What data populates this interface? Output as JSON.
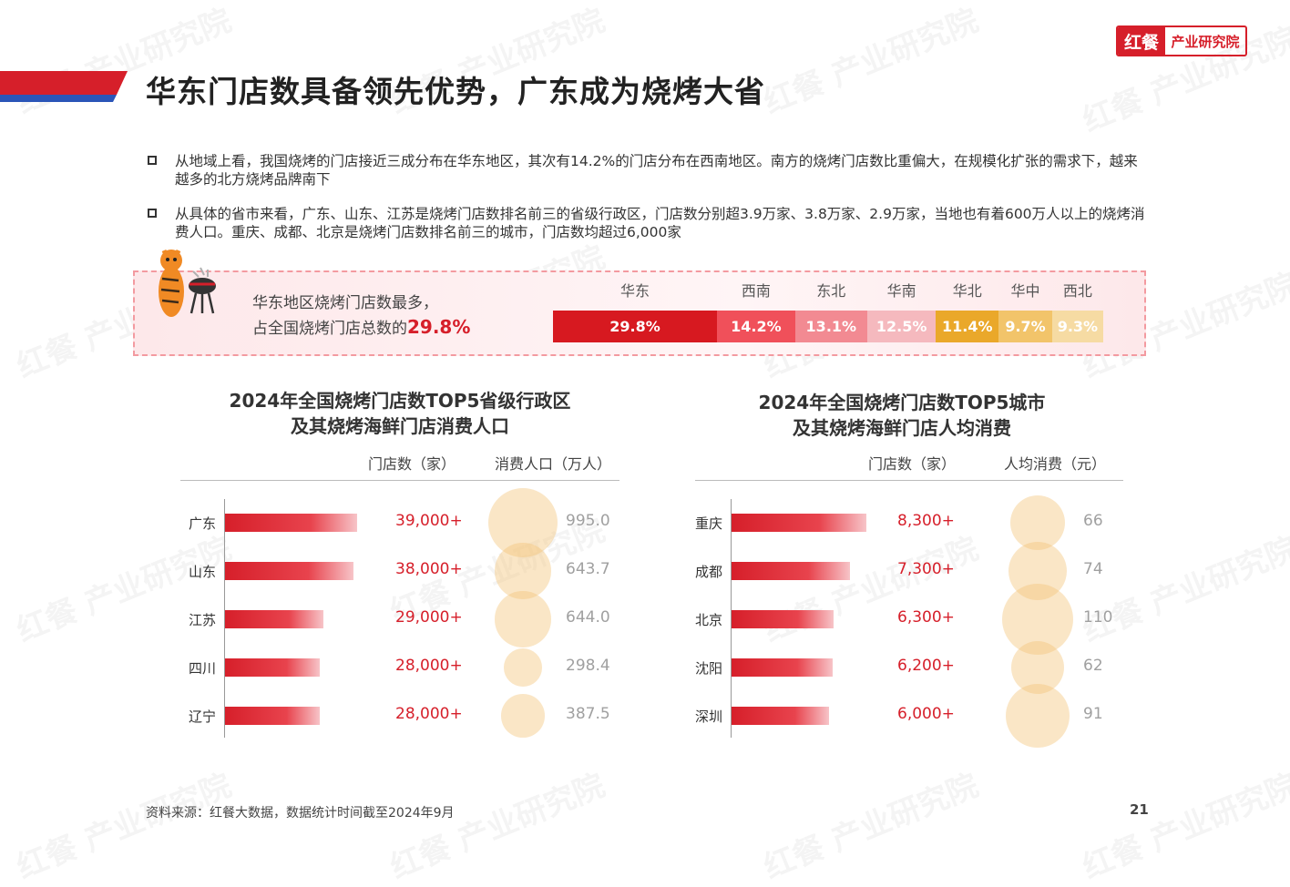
{
  "header": {
    "title": "华东门店数具备领先优势，广东成为烧烤大省",
    "logo_mark": "红餐",
    "logo_text": "产业研究院",
    "accent_color": "#d61f2a",
    "accent_blue": "#2a55b8"
  },
  "bullets": [
    "从地域上看，我国烧烤的门店接近三成分布在华东地区，其次有14.2%的门店分布在西南地区。南方的烧烤门店数比重偏大，在规模化扩张的需求下，越来越多的北方烧烤品牌南下",
    "从具体的省市来看，广东、山东、江苏是烧烤门店数排名前三的省级行政区，门店数分别超3.9万家、3.8万家、2.9万家，当地也有着600万人以上的烧烤消费人口。重庆、成都、北京是烧烤门店数排名前三的城市，门店数均超过6,000家"
  ],
  "highlight": {
    "line1": "华东地区烧烤门店数最多，",
    "line2_prefix": "占全国烧烤门店总数的",
    "line2_value": "29.8%",
    "mascot_icon": "tiger-bbq-icon"
  },
  "chart_data": [
    {
      "type": "bar",
      "stacked": true,
      "unit": "%",
      "categories": [
        "华东",
        "西南",
        "东北",
        "华南",
        "华北",
        "华中",
        "西北"
      ],
      "values": [
        29.8,
        14.2,
        13.1,
        12.5,
        11.4,
        9.7,
        9.3
      ],
      "labels": [
        "29.8%",
        "14.2%",
        "13.1%",
        "12.5%",
        "11.4%",
        "9.7%",
        "9.3%"
      ],
      "colors": [
        "#d71920",
        "#f0505a",
        "#f28a92",
        "#f5b9be",
        "#eaa82a",
        "#f2c46a",
        "#f6dba3"
      ]
    },
    {
      "type": "bar",
      "orientation": "horizontal",
      "title": "2024年全国烧烤门店数TOP5省级行政区\n及其烧烤海鲜门店消费人口",
      "title_lines": [
        "2024年全国烧烤门店数TOP5省级行政区",
        "及其烧烤海鲜门店消费人口"
      ],
      "col_headers": [
        "门店数（家）",
        "消费人口（万人）"
      ],
      "categories": [
        "广东",
        "山东",
        "江苏",
        "四川",
        "辽宁"
      ],
      "series": [
        {
          "name": "门店数（家）",
          "values": [
            39000,
            38000,
            29000,
            28000,
            28000
          ],
          "labels": [
            "39,000+",
            "38,000+",
            "29,000+",
            "28,000+",
            "28,000+"
          ]
        },
        {
          "name": "消费人口（万人）",
          "values": [
            995.0,
            643.7,
            644.0,
            298.4,
            387.5
          ],
          "labels": [
            "995.0",
            "643.7",
            "644.0",
            "298.4",
            "387.5"
          ],
          "mark": "bubble"
        }
      ]
    },
    {
      "type": "bar",
      "orientation": "horizontal",
      "title": "2024年全国烧烤门店数TOP5城市\n及其烧烤海鲜门店人均消费",
      "title_lines": [
        "2024年全国烧烤门店数TOP5城市",
        "及其烧烤海鲜门店人均消费"
      ],
      "col_headers": [
        "门店数（家）",
        "人均消费（元）"
      ],
      "categories": [
        "重庆",
        "成都",
        "北京",
        "沈阳",
        "深圳"
      ],
      "series": [
        {
          "name": "门店数（家）",
          "values": [
            8300,
            7300,
            6300,
            6200,
            6000
          ],
          "labels": [
            "8,300+",
            "7,300+",
            "6,300+",
            "6,200+",
            "6,000+"
          ]
        },
        {
          "name": "人均消费（元）",
          "values": [
            66,
            74,
            110,
            62,
            91
          ],
          "labels": [
            "66",
            "74",
            "110",
            "62",
            "91"
          ],
          "mark": "bubble"
        }
      ]
    }
  ],
  "footer": {
    "source": "资料来源：红餐大数据，数据统计时间截至2024年9月",
    "page_number": "21"
  },
  "watermark": "红餐 产业研究院"
}
